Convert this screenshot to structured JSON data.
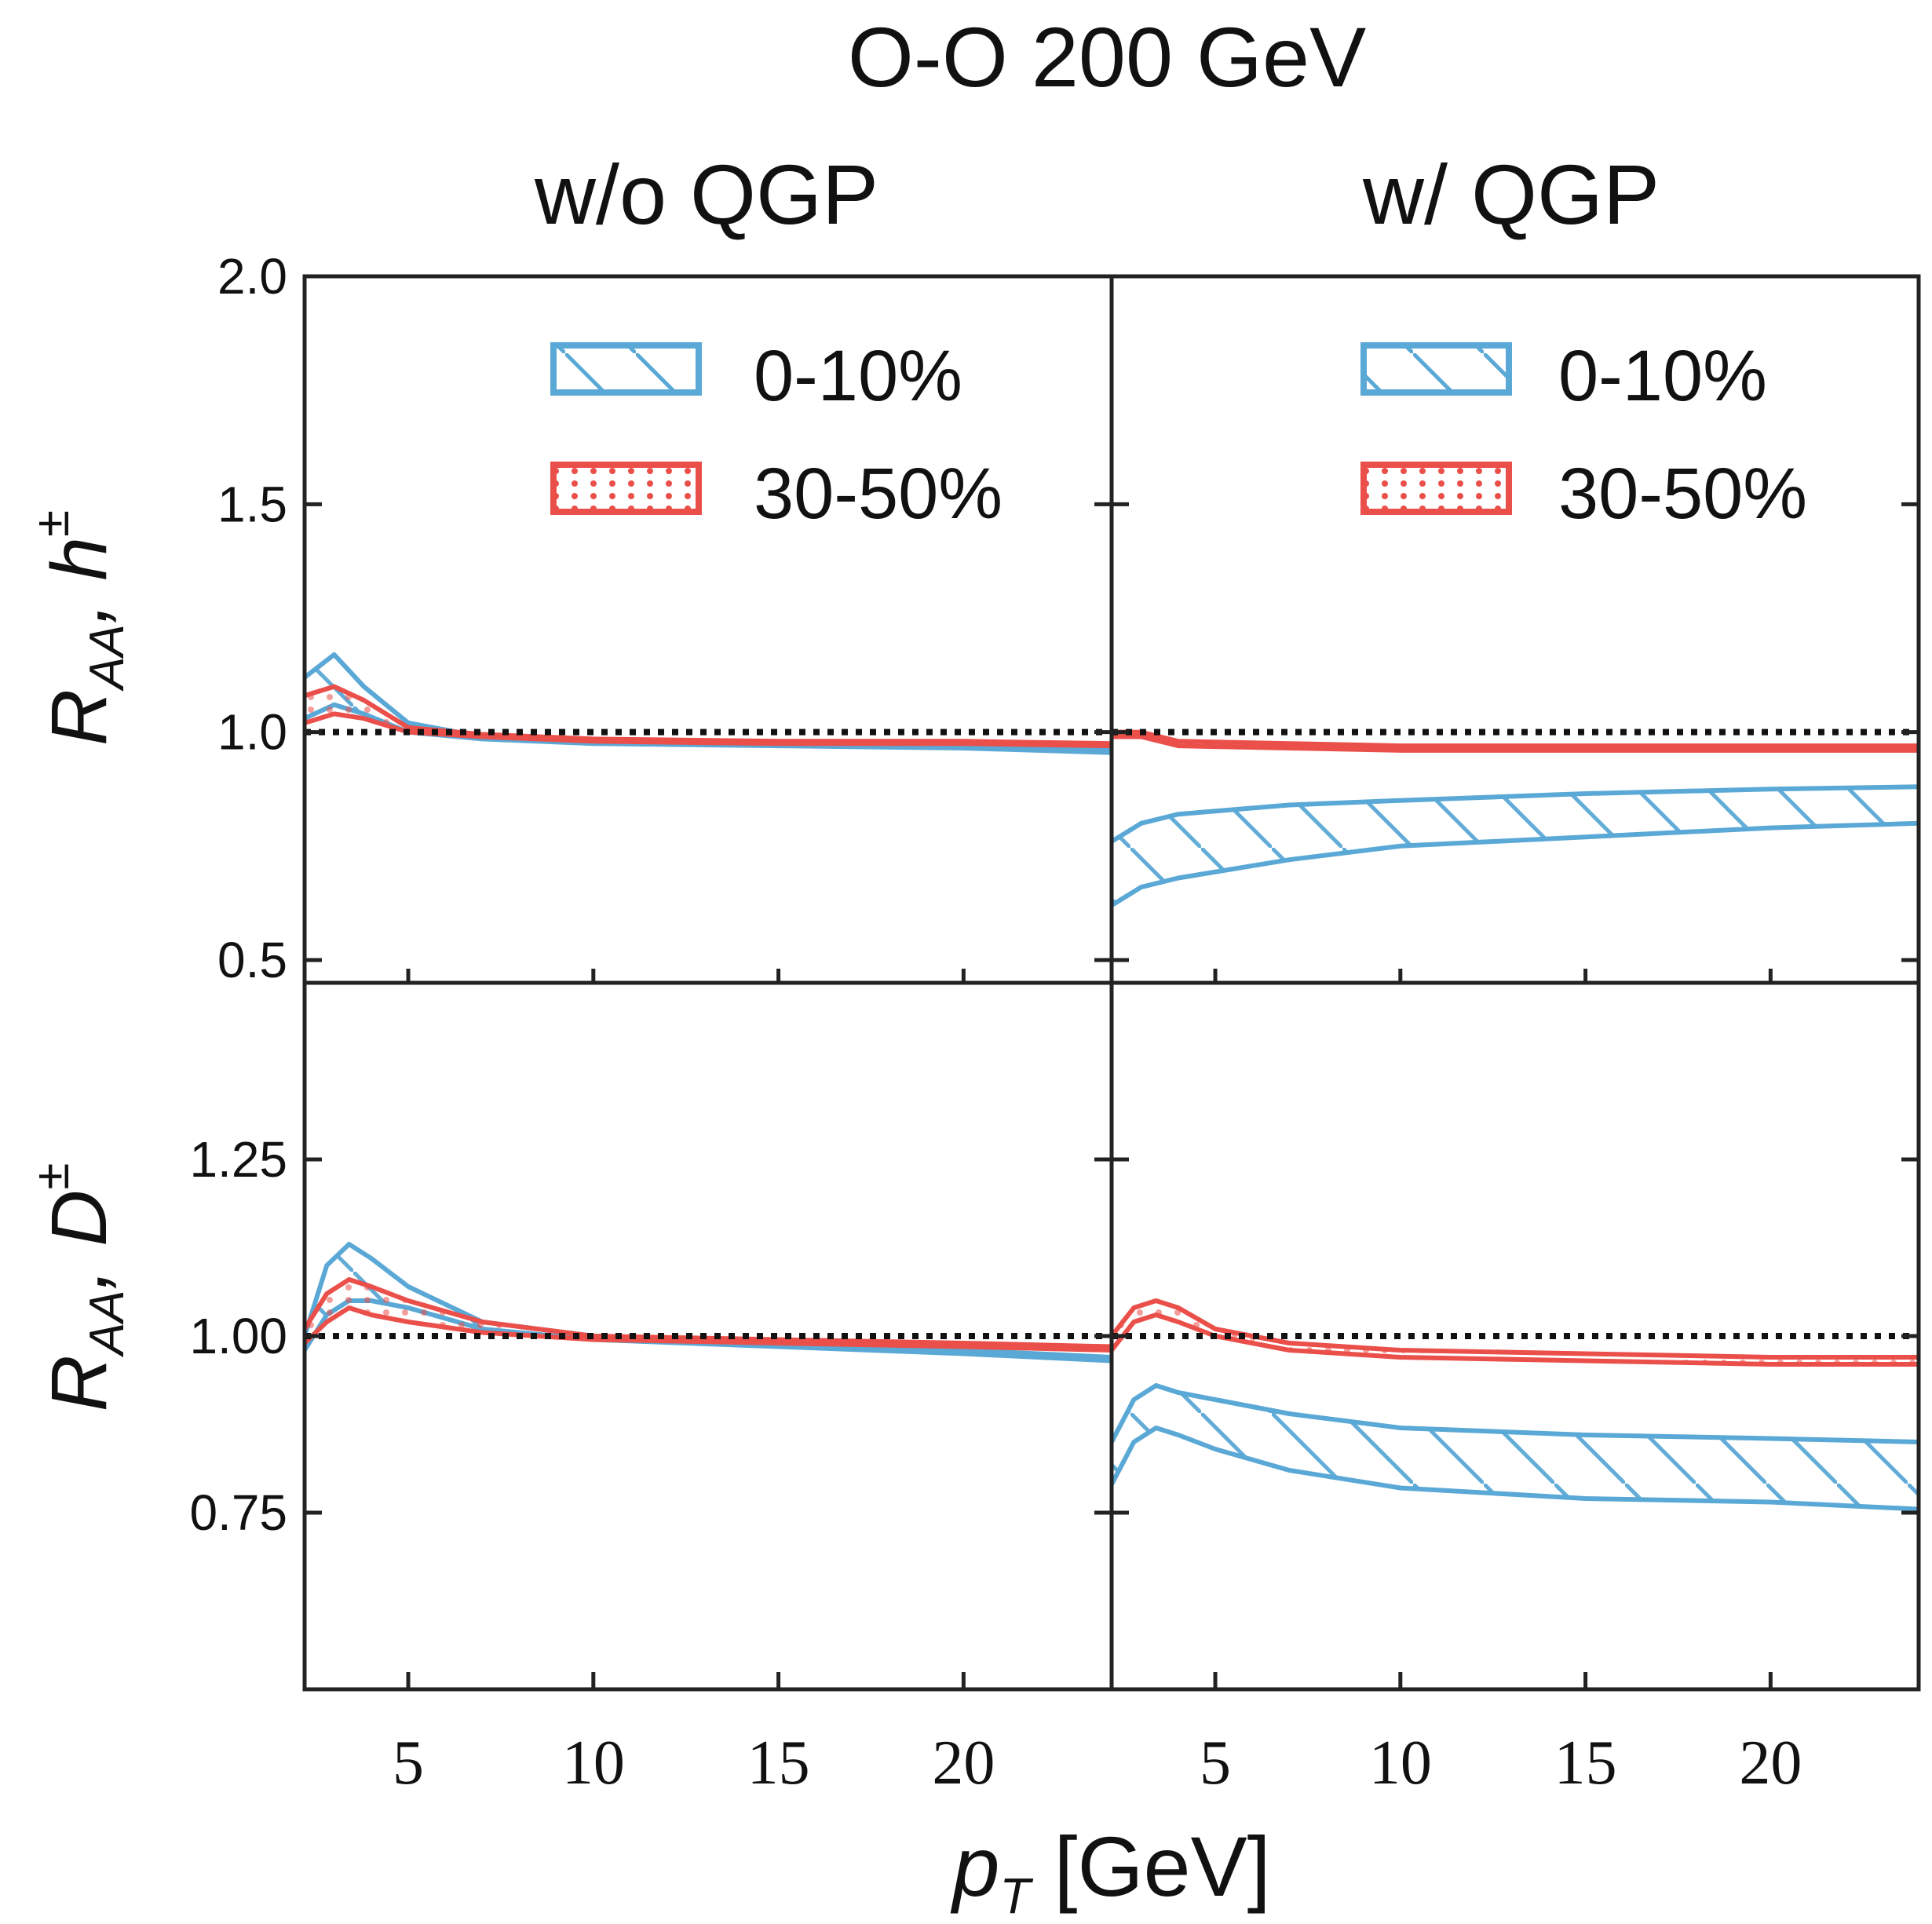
{
  "title": "O-O 200 GeV",
  "column_titles": [
    "w/o QGP",
    "w/ QGP"
  ],
  "colors": {
    "blue": "#5aa8d6",
    "red": "#ea4f4a",
    "axis": "#222222",
    "reference": "#111111"
  },
  "legend": [
    {
      "label": "0-10%",
      "color": "#5aa8d6",
      "pattern": "hatch"
    },
    {
      "label": "30-50%",
      "color": "#ea4f4a",
      "pattern": "dots"
    }
  ],
  "chart_data": {
    "type": "line",
    "xlabel_main": "p",
    "xlabel_sub": "T",
    "xlabel_rest": " [GeV]",
    "xlim": [
      2.2,
      24
    ],
    "x_ticks": [
      5,
      10,
      15,
      20
    ],
    "x_tick_labels": [
      "5",
      "10",
      "15",
      "20"
    ],
    "rows": [
      {
        "ylabel_main": "R",
        "ylabel_sub": "AA",
        "ylabel_particle": "h",
        "ylabel_sup": "±",
        "ylim": [
          0.45,
          2.0
        ],
        "y_ticks": [
          0.5,
          1.0,
          1.5,
          2.0
        ],
        "y_tick_labels": [
          "0.5",
          "1.0",
          "1.5",
          "2.0"
        ],
        "reference": 1.0
      },
      {
        "ylabel_main": "R",
        "ylabel_sub": "AA",
        "ylabel_particle": "D",
        "ylabel_sup": "±",
        "ylim": [
          0.5,
          1.5
        ],
        "y_ticks": [
          0.75,
          1.0,
          1.25
        ],
        "y_tick_labels": [
          "0.75",
          "1.00",
          "1.25"
        ],
        "reference": 1.0
      }
    ],
    "panels": [
      {
        "row": 0,
        "col": 0,
        "name": "h-without-QGP",
        "series": [
          {
            "name": "0-10%",
            "upper": [
              [
                2.2,
                1.12
              ],
              [
                3.0,
                1.17
              ],
              [
                3.8,
                1.1
              ],
              [
                5,
                1.02
              ],
              [
                7,
                0.99
              ],
              [
                10,
                0.98
              ],
              [
                15,
                0.975
              ],
              [
                20,
                0.97
              ],
              [
                24,
                0.96
              ]
            ],
            "lower": [
              [
                2.2,
                1.03
              ],
              [
                3.0,
                1.06
              ],
              [
                3.8,
                1.04
              ],
              [
                5,
                1.0
              ],
              [
                7,
                0.985
              ],
              [
                10,
                0.975
              ],
              [
                15,
                0.97
              ],
              [
                20,
                0.965
              ],
              [
                24,
                0.955
              ]
            ]
          },
          {
            "name": "30-50%",
            "upper": [
              [
                2.2,
                1.08
              ],
              [
                3.0,
                1.1
              ],
              [
                3.8,
                1.07
              ],
              [
                5,
                1.01
              ],
              [
                7,
                0.995
              ],
              [
                10,
                0.985
              ],
              [
                15,
                0.98
              ],
              [
                20,
                0.98
              ],
              [
                24,
                0.975
              ]
            ],
            "lower": [
              [
                2.2,
                1.02
              ],
              [
                3.0,
                1.04
              ],
              [
                3.8,
                1.03
              ],
              [
                5,
                1.0
              ],
              [
                7,
                0.99
              ],
              [
                10,
                0.98
              ],
              [
                15,
                0.975
              ],
              [
                20,
                0.975
              ],
              [
                24,
                0.97
              ]
            ]
          }
        ]
      },
      {
        "row": 0,
        "col": 1,
        "name": "h-with-QGP",
        "series": [
          {
            "name": "0-10%",
            "upper": [
              [
                2.2,
                0.76
              ],
              [
                3.0,
                0.8
              ],
              [
                4,
                0.82
              ],
              [
                7,
                0.84
              ],
              [
                10,
                0.85
              ],
              [
                15,
                0.865
              ],
              [
                20,
                0.875
              ],
              [
                24,
                0.88
              ]
            ],
            "lower": [
              [
                2.2,
                0.62
              ],
              [
                3.0,
                0.66
              ],
              [
                4,
                0.68
              ],
              [
                7,
                0.72
              ],
              [
                10,
                0.75
              ],
              [
                15,
                0.77
              ],
              [
                20,
                0.79
              ],
              [
                24,
                0.8
              ]
            ]
          },
          {
            "name": "30-50%",
            "upper": [
              [
                2.2,
                1.0
              ],
              [
                3.0,
                1.0
              ],
              [
                4,
                0.98
              ],
              [
                7,
                0.975
              ],
              [
                10,
                0.97
              ],
              [
                15,
                0.97
              ],
              [
                20,
                0.97
              ],
              [
                24,
                0.97
              ]
            ],
            "lower": [
              [
                2.2,
                0.99
              ],
              [
                3.0,
                0.99
              ],
              [
                4,
                0.97
              ],
              [
                7,
                0.965
              ],
              [
                10,
                0.96
              ],
              [
                15,
                0.96
              ],
              [
                20,
                0.96
              ],
              [
                24,
                0.96
              ]
            ]
          }
        ]
      },
      {
        "row": 1,
        "col": 0,
        "name": "D-without-QGP",
        "series": [
          {
            "name": "0-10%",
            "upper": [
              [
                2.2,
                1.0
              ],
              [
                2.8,
                1.1
              ],
              [
                3.4,
                1.13
              ],
              [
                4,
                1.11
              ],
              [
                5,
                1.07
              ],
              [
                7,
                1.02
              ],
              [
                10,
                1.0
              ],
              [
                15,
                0.99
              ],
              [
                20,
                0.98
              ],
              [
                24,
                0.97
              ]
            ],
            "lower": [
              [
                2.2,
                0.98
              ],
              [
                2.8,
                1.03
              ],
              [
                3.4,
                1.05
              ],
              [
                4,
                1.05
              ],
              [
                5,
                1.04
              ],
              [
                7,
                1.01
              ],
              [
                10,
                0.995
              ],
              [
                15,
                0.985
              ],
              [
                20,
                0.975
              ],
              [
                24,
                0.965
              ]
            ]
          },
          {
            "name": "30-50%",
            "upper": [
              [
                2.2,
                1.01
              ],
              [
                2.8,
                1.06
              ],
              [
                3.4,
                1.08
              ],
              [
                4,
                1.07
              ],
              [
                5,
                1.05
              ],
              [
                7,
                1.02
              ],
              [
                10,
                1.0
              ],
              [
                15,
                0.995
              ],
              [
                20,
                0.99
              ],
              [
                24,
                0.985
              ]
            ],
            "lower": [
              [
                2.2,
                0.99
              ],
              [
                2.8,
                1.02
              ],
              [
                3.4,
                1.04
              ],
              [
                4,
                1.03
              ],
              [
                5,
                1.02
              ],
              [
                7,
                1.005
              ],
              [
                10,
                0.995
              ],
              [
                15,
                0.99
              ],
              [
                20,
                0.985
              ],
              [
                24,
                0.98
              ]
            ]
          }
        ]
      },
      {
        "row": 1,
        "col": 1,
        "name": "D-with-QGP",
        "series": [
          {
            "name": "0-10%",
            "upper": [
              [
                2.2,
                0.85
              ],
              [
                2.8,
                0.91
              ],
              [
                3.4,
                0.93
              ],
              [
                4,
                0.92
              ],
              [
                5,
                0.91
              ],
              [
                7,
                0.89
              ],
              [
                10,
                0.87
              ],
              [
                15,
                0.86
              ],
              [
                20,
                0.855
              ],
              [
                24,
                0.85
              ]
            ],
            "lower": [
              [
                2.2,
                0.79
              ],
              [
                2.8,
                0.85
              ],
              [
                3.4,
                0.87
              ],
              [
                4,
                0.86
              ],
              [
                5,
                0.84
              ],
              [
                7,
                0.81
              ],
              [
                10,
                0.785
              ],
              [
                15,
                0.77
              ],
              [
                20,
                0.765
              ],
              [
                24,
                0.755
              ]
            ]
          },
          {
            "name": "30-50%",
            "upper": [
              [
                2.2,
                1.0
              ],
              [
                2.8,
                1.04
              ],
              [
                3.4,
                1.05
              ],
              [
                4,
                1.04
              ],
              [
                5,
                1.01
              ],
              [
                7,
                0.99
              ],
              [
                10,
                0.98
              ],
              [
                15,
                0.975
              ],
              [
                20,
                0.97
              ],
              [
                24,
                0.97
              ]
            ],
            "lower": [
              [
                2.2,
                0.98
              ],
              [
                2.8,
                1.02
              ],
              [
                3.4,
                1.03
              ],
              [
                4,
                1.02
              ],
              [
                5,
                1.0
              ],
              [
                7,
                0.98
              ],
              [
                10,
                0.97
              ],
              [
                15,
                0.965
              ],
              [
                20,
                0.96
              ],
              [
                24,
                0.96
              ]
            ]
          }
        ]
      }
    ]
  }
}
